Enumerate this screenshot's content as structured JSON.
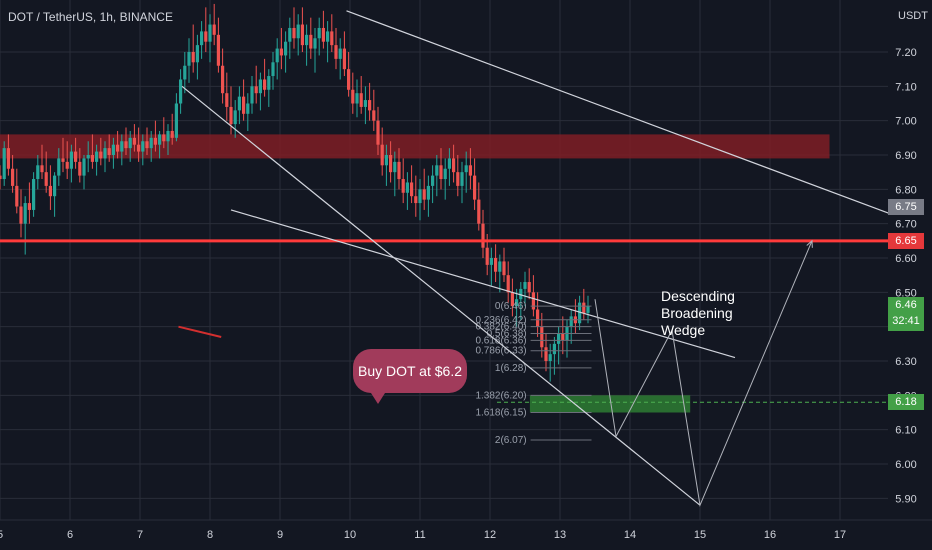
{
  "header": {
    "symbol": "DOT / TetherUS, 1h, BINANCE",
    "currency": "USDT"
  },
  "chart_data": {
    "type": "candlestick",
    "symbol": "DOT / TetherUS",
    "timeframe": "1h",
    "exchange": "BINANCE",
    "currency": "USDT",
    "x_ticks": [
      "5",
      "6",
      "7",
      "8",
      "9",
      "10",
      "11",
      "12",
      "13",
      "14",
      "15",
      "16",
      "17"
    ],
    "y_ticks": [
      5.9,
      6.0,
      6.1,
      6.2,
      6.3,
      6.4,
      6.5,
      6.6,
      6.7,
      6.8,
      6.9,
      7.0,
      7.1,
      7.2
    ],
    "ylim": [
      5.85,
      7.32
    ],
    "xlim": [
      5.0,
      17.7
    ],
    "last_price": 6.46,
    "countdown": "32:41",
    "price_labels": [
      {
        "value": "6.75",
        "color": "#787b86"
      },
      {
        "value": "6.65",
        "color": "#e5383b"
      },
      {
        "value": "6.18",
        "color": "#43a047"
      }
    ],
    "resistance_zone": [
      6.89,
      6.96
    ],
    "horizontal_line": 6.65,
    "buy_level": 6.18,
    "fib_levels": [
      {
        "label": "0(6.46)",
        "value": 6.46
      },
      {
        "label": "0.236(6.42)",
        "value": 6.42
      },
      {
        "label": "0.382(6.40)",
        "value": 6.4
      },
      {
        "label": "0.5(6.38)",
        "value": 6.38
      },
      {
        "label": "0.618(6.36)",
        "value": 6.36
      },
      {
        "label": "0.786(6.33)",
        "value": 6.33
      },
      {
        "label": "1(6.28)",
        "value": 6.28
      },
      {
        "label": "1.382(6.20)",
        "value": 6.2
      },
      {
        "label": "1.618(6.15)",
        "value": 6.15
      },
      {
        "label": "2(6.07)",
        "value": 6.07
      }
    ],
    "trendlines": [
      {
        "from": [
          9.95,
          7.32
        ],
        "to": [
          17.7,
          6.73
        ]
      },
      {
        "from": [
          7.6,
          7.1
        ],
        "to": [
          15.0,
          5.88
        ]
      },
      {
        "from": [
          8.3,
          6.74
        ],
        "to": [
          15.5,
          6.31
        ]
      }
    ],
    "projection_path": [
      [
        13.5,
        6.48
      ],
      [
        13.8,
        6.08
      ],
      [
        14.6,
        6.39
      ],
      [
        15.0,
        5.88
      ],
      [
        16.6,
        6.65
      ]
    ],
    "candles": [
      [
        5.0,
        6.84,
        6.87,
        6.8,
        6.83
      ],
      [
        5.06,
        6.83,
        6.94,
        6.81,
        6.92
      ],
      [
        5.12,
        6.92,
        6.96,
        6.84,
        6.86
      ],
      [
        5.18,
        6.86,
        6.9,
        6.79,
        6.81
      ],
      [
        5.24,
        6.81,
        6.86,
        6.73,
        6.75
      ],
      [
        5.3,
        6.75,
        6.8,
        6.66,
        6.7
      ],
      [
        5.36,
        6.7,
        6.78,
        6.61,
        6.76
      ],
      [
        5.42,
        6.76,
        6.82,
        6.7,
        6.74
      ],
      [
        5.48,
        6.74,
        6.85,
        6.72,
        6.83
      ],
      [
        5.54,
        6.83,
        6.9,
        6.8,
        6.87
      ],
      [
        5.6,
        6.87,
        6.93,
        6.83,
        6.85
      ],
      [
        5.66,
        6.85,
        6.91,
        6.79,
        6.81
      ],
      [
        5.72,
        6.81,
        6.87,
        6.74,
        6.78
      ],
      [
        5.78,
        6.78,
        6.85,
        6.72,
        6.84
      ],
      [
        5.84,
        6.84,
        6.92,
        6.81,
        6.89
      ],
      [
        5.9,
        6.89,
        6.95,
        6.85,
        6.88
      ],
      [
        5.96,
        6.88,
        6.94,
        6.83,
        6.86
      ],
      [
        6.02,
        6.86,
        6.93,
        6.82,
        6.91
      ],
      [
        6.08,
        6.91,
        6.95,
        6.86,
        6.88
      ],
      [
        6.14,
        6.88,
        6.92,
        6.82,
        6.84
      ],
      [
        6.2,
        6.84,
        6.9,
        6.8,
        6.89
      ],
      [
        6.26,
        6.89,
        6.94,
        6.85,
        6.9
      ],
      [
        6.32,
        6.9,
        6.96,
        6.86,
        6.88
      ],
      [
        6.38,
        6.88,
        6.93,
        6.84,
        6.91
      ],
      [
        6.44,
        6.91,
        6.95,
        6.87,
        6.89
      ],
      [
        6.5,
        6.89,
        6.94,
        6.85,
        6.92
      ],
      [
        6.56,
        6.92,
        6.96,
        6.88,
        6.9
      ],
      [
        6.62,
        6.9,
        6.95,
        6.86,
        6.93
      ],
      [
        6.68,
        6.93,
        6.97,
        6.89,
        6.91
      ],
      [
        6.74,
        6.91,
        6.96,
        6.87,
        6.94
      ],
      [
        6.8,
        6.94,
        6.98,
        6.9,
        6.92
      ],
      [
        6.86,
        6.92,
        6.97,
        6.88,
        6.95
      ],
      [
        6.92,
        6.95,
        6.99,
        6.91,
        6.93
      ],
      [
        6.98,
        6.93,
        6.98,
        6.88,
        6.91
      ],
      [
        7.04,
        6.91,
        6.96,
        6.87,
        6.94
      ],
      [
        7.1,
        6.94,
        6.98,
        6.9,
        6.92
      ],
      [
        7.16,
        6.92,
        6.97,
        6.88,
        6.95
      ],
      [
        7.22,
        6.95,
        7.0,
        6.91,
        6.93
      ],
      [
        7.28,
        6.93,
        6.97,
        6.89,
        6.96
      ],
      [
        7.34,
        6.96,
        7.01,
        6.92,
        6.94
      ],
      [
        7.4,
        6.94,
        6.99,
        6.9,
        6.97
      ],
      [
        7.46,
        6.97,
        7.02,
        6.93,
        6.95
      ],
      [
        7.52,
        6.95,
        7.08,
        6.94,
        7.05
      ],
      [
        7.58,
        7.05,
        7.15,
        7.02,
        7.12
      ],
      [
        7.64,
        7.12,
        7.2,
        7.08,
        7.16
      ],
      [
        7.7,
        7.16,
        7.24,
        7.11,
        7.2
      ],
      [
        7.76,
        7.2,
        7.28,
        7.14,
        7.17
      ],
      [
        7.82,
        7.17,
        7.25,
        7.12,
        7.22
      ],
      [
        7.88,
        7.22,
        7.29,
        7.18,
        7.26
      ],
      [
        7.94,
        7.26,
        7.33,
        7.2,
        7.23
      ],
      [
        8.0,
        7.23,
        7.31,
        7.17,
        7.28
      ],
      [
        8.06,
        7.28,
        7.34,
        7.22,
        7.25
      ],
      [
        8.12,
        7.25,
        7.3,
        7.14,
        7.16
      ],
      [
        8.18,
        7.16,
        7.21,
        7.05,
        7.08
      ],
      [
        8.24,
        7.08,
        7.14,
        7.0,
        7.04
      ],
      [
        8.3,
        7.04,
        7.1,
        6.96,
        6.99
      ],
      [
        8.36,
        6.99,
        7.06,
        6.95,
        7.03
      ],
      [
        8.42,
        7.03,
        7.1,
        6.99,
        7.07
      ],
      [
        8.48,
        7.07,
        7.12,
        7.0,
        7.02
      ],
      [
        8.54,
        7.02,
        7.08,
        6.97,
        7.05
      ],
      [
        8.6,
        7.05,
        7.13,
        7.02,
        7.1
      ],
      [
        8.66,
        7.1,
        7.16,
        7.05,
        7.08
      ],
      [
        8.72,
        7.08,
        7.14,
        7.03,
        7.12
      ],
      [
        8.78,
        7.12,
        7.18,
        7.07,
        7.09
      ],
      [
        8.84,
        7.09,
        7.15,
        7.04,
        7.13
      ],
      [
        8.9,
        7.13,
        7.2,
        7.09,
        7.17
      ],
      [
        8.96,
        7.17,
        7.24,
        7.12,
        7.21
      ],
      [
        9.02,
        7.21,
        7.27,
        7.15,
        7.19
      ],
      [
        9.08,
        7.19,
        7.26,
        7.14,
        7.23
      ],
      [
        9.14,
        7.23,
        7.3,
        7.18,
        7.27
      ],
      [
        9.2,
        7.27,
        7.33,
        7.21,
        7.24
      ],
      [
        9.26,
        7.24,
        7.31,
        7.19,
        7.28
      ],
      [
        9.32,
        7.28,
        7.33,
        7.2,
        7.22
      ],
      [
        9.38,
        7.22,
        7.28,
        7.16,
        7.25
      ],
      [
        9.44,
        7.25,
        7.3,
        7.18,
        7.21
      ],
      [
        9.5,
        7.21,
        7.27,
        7.14,
        7.24
      ],
      [
        9.56,
        7.24,
        7.3,
        7.19,
        7.27
      ],
      [
        9.62,
        7.27,
        7.32,
        7.21,
        7.23
      ],
      [
        9.68,
        7.23,
        7.29,
        7.17,
        7.26
      ],
      [
        9.74,
        7.26,
        7.31,
        7.2,
        7.22
      ],
      [
        9.8,
        7.22,
        7.27,
        7.15,
        7.18
      ],
      [
        9.86,
        7.18,
        7.24,
        7.12,
        7.21
      ],
      [
        9.92,
        7.21,
        7.26,
        7.13,
        7.15
      ],
      [
        9.98,
        7.15,
        7.2,
        7.07,
        7.09
      ],
      [
        10.04,
        7.09,
        7.14,
        7.02,
        7.05
      ],
      [
        10.1,
        7.05,
        7.12,
        7.01,
        7.08
      ],
      [
        10.16,
        7.08,
        7.13,
        7.02,
        7.04
      ],
      [
        10.22,
        7.04,
        7.1,
        6.99,
        7.06
      ],
      [
        10.28,
        7.06,
        7.11,
        7.0,
        7.03
      ],
      [
        10.34,
        7.03,
        7.09,
        6.97,
        7.0
      ],
      [
        10.4,
        7.0,
        7.04,
        6.9,
        6.93
      ],
      [
        10.46,
        6.93,
        6.98,
        6.84,
        6.87
      ],
      [
        10.52,
        6.87,
        6.93,
        6.81,
        6.9
      ],
      [
        10.58,
        6.9,
        6.94,
        6.82,
        6.85
      ],
      [
        10.64,
        6.85,
        6.91,
        6.78,
        6.88
      ],
      [
        10.7,
        6.88,
        6.92,
        6.8,
        6.83
      ],
      [
        10.76,
        6.83,
        6.89,
        6.76,
        6.79
      ],
      [
        10.82,
        6.79,
        6.85,
        6.74,
        6.82
      ],
      [
        10.88,
        6.82,
        6.87,
        6.76,
        6.78
      ],
      [
        10.94,
        6.78,
        6.84,
        6.72,
        6.76
      ],
      [
        11.0,
        6.76,
        6.83,
        6.71,
        6.8
      ],
      [
        11.06,
        6.8,
        6.86,
        6.74,
        6.77
      ],
      [
        11.12,
        6.77,
        6.84,
        6.72,
        6.81
      ],
      [
        11.18,
        6.81,
        6.87,
        6.76,
        6.84
      ],
      [
        11.24,
        6.84,
        6.9,
        6.78,
        6.87
      ],
      [
        11.3,
        6.87,
        6.92,
        6.8,
        6.83
      ],
      [
        11.36,
        6.83,
        6.89,
        6.77,
        6.86
      ],
      [
        11.42,
        6.86,
        6.92,
        6.81,
        6.89
      ],
      [
        11.48,
        6.89,
        6.93,
        6.82,
        6.85
      ],
      [
        11.54,
        6.85,
        6.9,
        6.78,
        6.81
      ],
      [
        11.6,
        6.81,
        6.88,
        6.76,
        6.85
      ],
      [
        11.66,
        6.85,
        6.91,
        6.79,
        6.87
      ],
      [
        11.72,
        6.87,
        6.92,
        6.8,
        6.84
      ],
      [
        11.78,
        6.84,
        6.89,
        6.74,
        6.77
      ],
      [
        11.84,
        6.77,
        6.82,
        6.68,
        6.7
      ],
      [
        11.9,
        6.7,
        6.74,
        6.6,
        6.63
      ],
      [
        11.96,
        6.63,
        6.67,
        6.55,
        6.58
      ],
      [
        12.02,
        6.58,
        6.63,
        6.52,
        6.6
      ],
      [
        12.08,
        6.6,
        6.64,
        6.53,
        6.56
      ],
      [
        12.14,
        6.56,
        6.61,
        6.5,
        6.59
      ],
      [
        12.2,
        6.59,
        6.63,
        6.53,
        6.55
      ],
      [
        12.26,
        6.55,
        6.59,
        6.47,
        6.5
      ],
      [
        12.32,
        6.5,
        6.54,
        6.43,
        6.46
      ],
      [
        12.38,
        6.46,
        6.51,
        6.4,
        6.48
      ],
      [
        12.44,
        6.48,
        6.53,
        6.42,
        6.51
      ],
      [
        12.5,
        6.51,
        6.56,
        6.46,
        6.53
      ],
      [
        12.56,
        6.53,
        6.57,
        6.48,
        6.5
      ],
      [
        12.62,
        6.5,
        6.55,
        6.43,
        6.45
      ],
      [
        12.68,
        6.45,
        6.5,
        6.37,
        6.4
      ],
      [
        12.74,
        6.4,
        6.44,
        6.31,
        6.34
      ],
      [
        12.8,
        6.34,
        6.38,
        6.27,
        6.3
      ],
      [
        12.86,
        6.3,
        6.35,
        6.24,
        6.32
      ],
      [
        12.92,
        6.32,
        6.37,
        6.26,
        6.35
      ],
      [
        12.98,
        6.35,
        6.4,
        6.29,
        6.38
      ],
      [
        13.04,
        6.38,
        6.43,
        6.32,
        6.36
      ],
      [
        13.1,
        6.36,
        6.42,
        6.31,
        6.4
      ],
      [
        13.16,
        6.4,
        6.45,
        6.35,
        6.43
      ],
      [
        13.22,
        6.43,
        6.48,
        6.38,
        6.41
      ],
      [
        13.28,
        6.41,
        6.49,
        6.39,
        6.47
      ],
      [
        13.34,
        6.47,
        6.51,
        6.42,
        6.44
      ],
      [
        13.4,
        6.44,
        6.49,
        6.41,
        6.46
      ]
    ]
  },
  "annotations": {
    "callout": "Buy DOT at $6.2",
    "wedge_label": [
      "Descending",
      "Broadening",
      "Wedge"
    ]
  },
  "colors": {
    "background": "#131722",
    "up": "#26a69a",
    "down": "#ef5350",
    "zone": "#7f1d24",
    "redline": "#ff3b3b",
    "buy_zone": "#2e7d32",
    "grid": "#2a2e39",
    "trendline": "#d1d4dc",
    "projection": "#b0b3bb"
  }
}
